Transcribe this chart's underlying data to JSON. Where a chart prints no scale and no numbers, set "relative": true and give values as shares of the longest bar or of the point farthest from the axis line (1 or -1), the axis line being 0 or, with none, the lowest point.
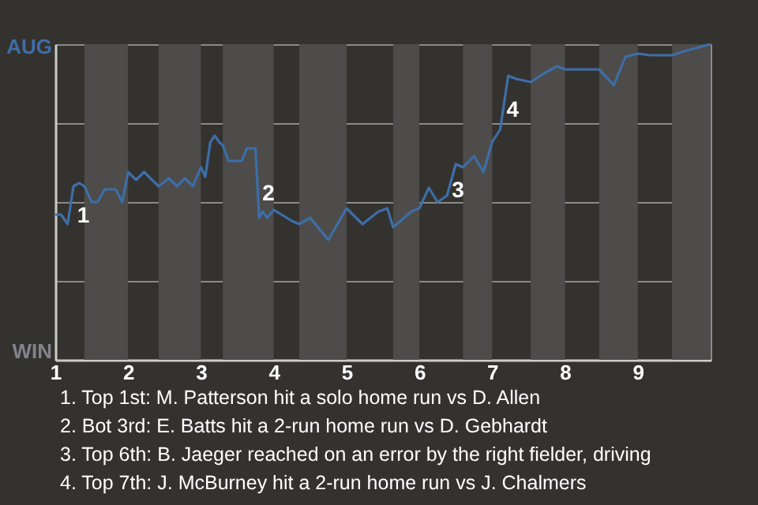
{
  "chart_data": {
    "type": "line",
    "relative": true,
    "x": [
      1,
      1.08,
      1.17,
      1.25,
      1.33,
      1.4,
      1.5,
      1.58,
      1.68,
      1.83,
      1.92,
      2,
      2.11,
      2.22,
      2.33,
      2.42,
      2.56,
      2.67,
      2.78,
      2.89,
      3,
      3.06,
      3.13,
      3.19,
      3.25,
      3.3,
      3.38,
      3.56,
      3.63,
      3.75,
      3.8,
      3.85,
      3.91,
      4,
      4.25,
      4.35,
      4.5,
      4.75,
      5,
      5.22,
      5.44,
      5.56,
      5.64,
      5.89,
      6,
      6.13,
      6.25,
      6.38,
      6.5,
      6.6,
      6.75,
      6.88,
      7,
      7.11,
      7.22,
      7.33,
      7.53,
      7.73,
      7.89,
      8,
      8.47,
      8.67,
      8.83,
      9,
      9.17,
      9.47,
      9.67,
      10
    ],
    "series": [
      {
        "color": "#3d6ea8",
        "values": [
          0.46,
          0.46,
          0.43,
          0.55,
          0.56,
          0.55,
          0.5,
          0.5,
          0.54,
          0.54,
          0.5,
          0.595,
          0.57,
          0.595,
          0.57,
          0.55,
          0.575,
          0.55,
          0.575,
          0.55,
          0.61,
          0.58,
          0.69,
          0.71,
          0.69,
          0.68,
          0.63,
          0.63,
          0.67,
          0.67,
          0.45,
          0.47,
          0.45,
          0.475,
          0.44,
          0.43,
          0.45,
          0.38,
          0.48,
          0.43,
          0.47,
          0.48,
          0.42,
          0.47,
          0.48,
          0.545,
          0.5,
          0.52,
          0.62,
          0.61,
          0.645,
          0.595,
          0.69,
          0.73,
          0.9,
          0.89,
          0.88,
          0.91,
          0.93,
          0.92,
          0.92,
          0.87,
          0.96,
          0.97,
          0.965,
          0.965,
          0.98,
          1.0
        ]
      }
    ],
    "xlim": [
      1,
      10
    ],
    "xticks": [
      1,
      2,
      3,
      4,
      5,
      6,
      7,
      8,
      9
    ],
    "grid": "y",
    "bands": [
      {
        "axis": "x",
        "from": 1.4,
        "to": 2,
        "color": "#4d4c4a"
      },
      {
        "axis": "x",
        "from": 2.42,
        "to": 3,
        "color": "#4d4c4a"
      },
      {
        "axis": "x",
        "from": 3.3,
        "to": 4,
        "color": "#4d4c4a"
      },
      {
        "axis": "x",
        "from": 4.35,
        "to": 5,
        "color": "#4d4c4a"
      },
      {
        "axis": "x",
        "from": 5.64,
        "to": 6,
        "color": "#4d4c4a"
      },
      {
        "axis": "x",
        "from": 6.6,
        "to": 7,
        "color": "#4d4c4a"
      },
      {
        "axis": "x",
        "from": 7.53,
        "to": 8,
        "color": "#4d4c4a"
      },
      {
        "axis": "x",
        "from": 8.47,
        "to": 9,
        "color": "#4d4c4a"
      },
      {
        "axis": "x",
        "from": 9.47,
        "to": 10,
        "color": "#4d4c4a"
      }
    ],
    "annotations": [
      "AUG",
      "WIN",
      {
        "text": "1",
        "x": 1.17,
        "y": 0.43
      },
      {
        "text": "2",
        "x": 3.8,
        "y": 0.45
      },
      {
        "text": "3",
        "x": 6.38,
        "y": 0.52
      },
      {
        "text": "4",
        "x": 7.11,
        "y": 0.73
      },
      "1. Top 1st: M. Patterson hit a solo home run vs D. Allen",
      "2. Bot 3rd: E. Batts hit a 2-run home run vs D. Gebhardt",
      "3. Top 6th: B. Jaeger reached on an error by the right fielder, driving",
      "4. Top 7th: J. McBurney hit a 2-run home run vs J. Chalmers"
    ]
  }
}
